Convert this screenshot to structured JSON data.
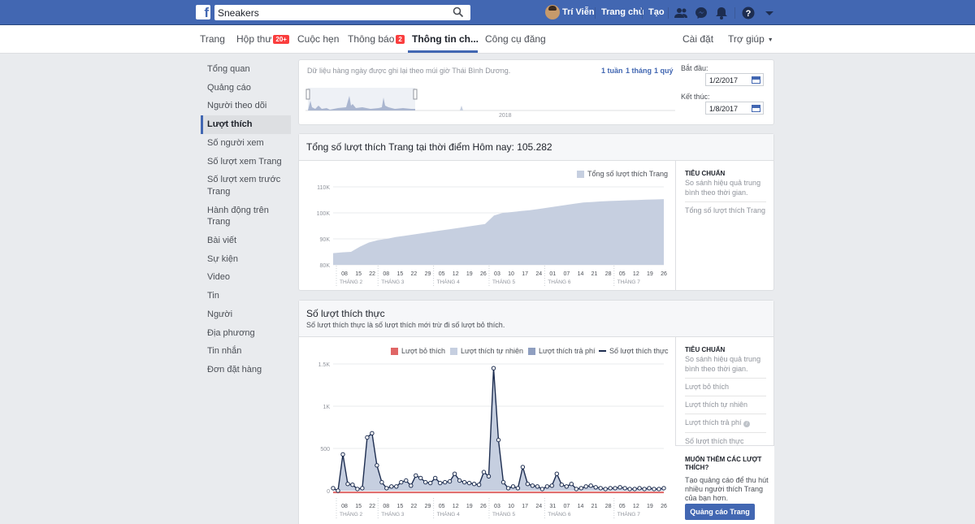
{
  "topbar": {
    "search_value": "Sneakers",
    "user_name": "Trí Viễn",
    "home_label": "Trang chủ",
    "create_label": "Tạo"
  },
  "pagenav": {
    "page": "Trang",
    "inbox": "Hộp thư",
    "inbox_badge": "20+",
    "appointments": "Cuộc hẹn",
    "notifications": "Thông báo",
    "notifications_badge": "2",
    "insights": "Thông tin ch...",
    "publishing_tools": "Công cụ đăng",
    "settings": "Cài đặt",
    "help": "Trợ giúp"
  },
  "sidebar": {
    "items": [
      "Tổng quan",
      "Quảng cáo",
      "Người theo dõi",
      "Lượt thích",
      "Số người xem",
      "Số lượt xem Trang",
      "Số lượt xem trước Trang",
      "Hành động trên Trang",
      "Bài viết",
      "Sự kiện",
      "Video",
      "Tin",
      "Người",
      "Địa phương",
      "Tin nhắn",
      "Đơn đặt hàng"
    ],
    "active": "Lượt thích"
  },
  "timeline": {
    "note": "Dữ liệu hàng ngày được ghi lại theo múi giờ Thái Bình Dương.",
    "range_week": "1 tuần",
    "range_month": "1 tháng",
    "range_quarter": "1 quý",
    "start_label": "Bắt đầu:",
    "start_value": "1/2/2017",
    "end_label": "Kết thúc:",
    "end_value": "1/8/2017",
    "year_label": "2018"
  },
  "total_likes": {
    "title": "Tổng số lượt thích Trang tại thời điểm Hôm nay: 105.282",
    "legend": "Tổng số lượt thích Trang",
    "side_title": "TIÊU CHUẨN",
    "side_text": "So sánh hiệu quả trung bình theo thời gian.",
    "side_item": "Tổng số lượt thích Trang"
  },
  "net_likes": {
    "title": "Số lượt thích thực",
    "subtitle": "Số lượt thích thực là số lượt thích mới trừ đi số lượt bỏ thích.",
    "legend_unlikes": "Lượt bỏ thích",
    "legend_organic": "Lượt thích tự nhiên",
    "legend_paid": "Lượt thích trả phí",
    "legend_net": "Số lượt thích thực",
    "side_title": "TIÊU CHUẨN",
    "side_text": "So sánh hiệu quả trung bình theo thời gian.",
    "side_items": [
      "Lượt bỏ thích",
      "Lượt thích tự nhiên",
      "Lượt thích trả phí",
      "Số lượt thích thực"
    ],
    "promo_title": "MUỐN THÊM CÁC LƯỢT THÍCH?",
    "promo_text": "Tạo quảng cáo để thu hút nhiều người thích Trang của bạn hơn.",
    "promo_button": "Quảng cáo Trang"
  },
  "colors": {
    "brand": "#4267b2",
    "area": "#c6cfe0",
    "unlikes": "#e06666",
    "net_line": "#1d2d50"
  },
  "chart_data": [
    {
      "type": "area",
      "title": "Tổng số lượt thích Trang tại thời điểm Hôm nay: 105.282",
      "series": [
        {
          "name": "Tổng số lượt thích Trang",
          "values": [
            84500,
            84800,
            85000,
            87000,
            88600,
            89500,
            90000,
            90700,
            91200,
            91700,
            92200,
            92700,
            93200,
            93700,
            94200,
            94700,
            95200,
            95700,
            99000,
            100000,
            100300,
            100700,
            101000,
            101500,
            102000,
            102500,
            103000,
            103500,
            104000,
            104200,
            104400,
            104550,
            104700,
            104850,
            104950,
            105050,
            105150,
            105282
          ]
        }
      ],
      "y_ticks": [
        "80K",
        "90K",
        "100K",
        "110K"
      ],
      "ylim": [
        80000,
        110000
      ],
      "x_ticks": [
        "08",
        "15",
        "22",
        "08",
        "15",
        "22",
        "29",
        "05",
        "12",
        "19",
        "26",
        "03",
        "10",
        "17",
        "24",
        "01",
        "07",
        "14",
        "21",
        "28",
        "05",
        "12",
        "19",
        "26"
      ],
      "months": [
        "THÁNG 2",
        "THÁNG 3",
        "THÁNG 4",
        "THÁNG 5",
        "THÁNG 6",
        "THÁNG 7"
      ]
    },
    {
      "type": "line",
      "title": "Số lượt thích thực",
      "series": [
        {
          "name": "Số lượt thích thực",
          "values": [
            30,
            0,
            430,
            80,
            70,
            20,
            30,
            630,
            680,
            300,
            100,
            30,
            50,
            50,
            100,
            120,
            60,
            180,
            150,
            100,
            90,
            150,
            90,
            100,
            110,
            200,
            120,
            100,
            90,
            80,
            70,
            220,
            170,
            1450,
            600,
            100,
            30,
            50,
            30,
            280,
            80,
            60,
            50,
            20,
            50,
            60,
            200,
            70,
            50,
            80,
            20,
            30,
            50,
            60,
            40,
            30,
            20,
            30,
            30,
            40,
            30,
            20,
            20,
            30,
            20,
            30,
            20,
            20,
            30
          ]
        },
        {
          "name": "Lượt bỏ thích",
          "values": [
            -20,
            -20,
            -20,
            -20,
            -20,
            -20,
            -20,
            -20,
            -20,
            -20,
            -20,
            -20,
            -20,
            -20,
            -20,
            -20,
            -20,
            -20,
            -20,
            -20,
            -20,
            -20,
            -20,
            -20,
            -20,
            -20,
            -20,
            -20,
            -20,
            -20,
            -20,
            -20,
            -20,
            -20,
            -20,
            -20,
            -20,
            -20,
            -20,
            -20,
            -20,
            -20,
            -20,
            -20,
            -20,
            -20,
            -20,
            -20,
            -20,
            -20,
            -20,
            -20,
            -20,
            -20,
            -20,
            -20,
            -20,
            -20,
            -20,
            -20,
            -20,
            -20,
            -20,
            -20,
            -20,
            -20,
            -20,
            -20,
            -20
          ]
        }
      ],
      "y_ticks": [
        "0",
        "500",
        "1K",
        "1.5K"
      ],
      "ylim": [
        0,
        1500
      ],
      "x_ticks": [
        "08",
        "15",
        "22",
        "08",
        "15",
        "22",
        "29",
        "05",
        "12",
        "19",
        "26",
        "03",
        "10",
        "17",
        "24",
        "31",
        "07",
        "14",
        "21",
        "28",
        "05",
        "12",
        "19",
        "26"
      ],
      "months": [
        "THÁNG 2",
        "THÁNG 3",
        "THÁNG 4",
        "THÁNG 5",
        "THÁNG 6",
        "THÁNG 7"
      ]
    }
  ]
}
